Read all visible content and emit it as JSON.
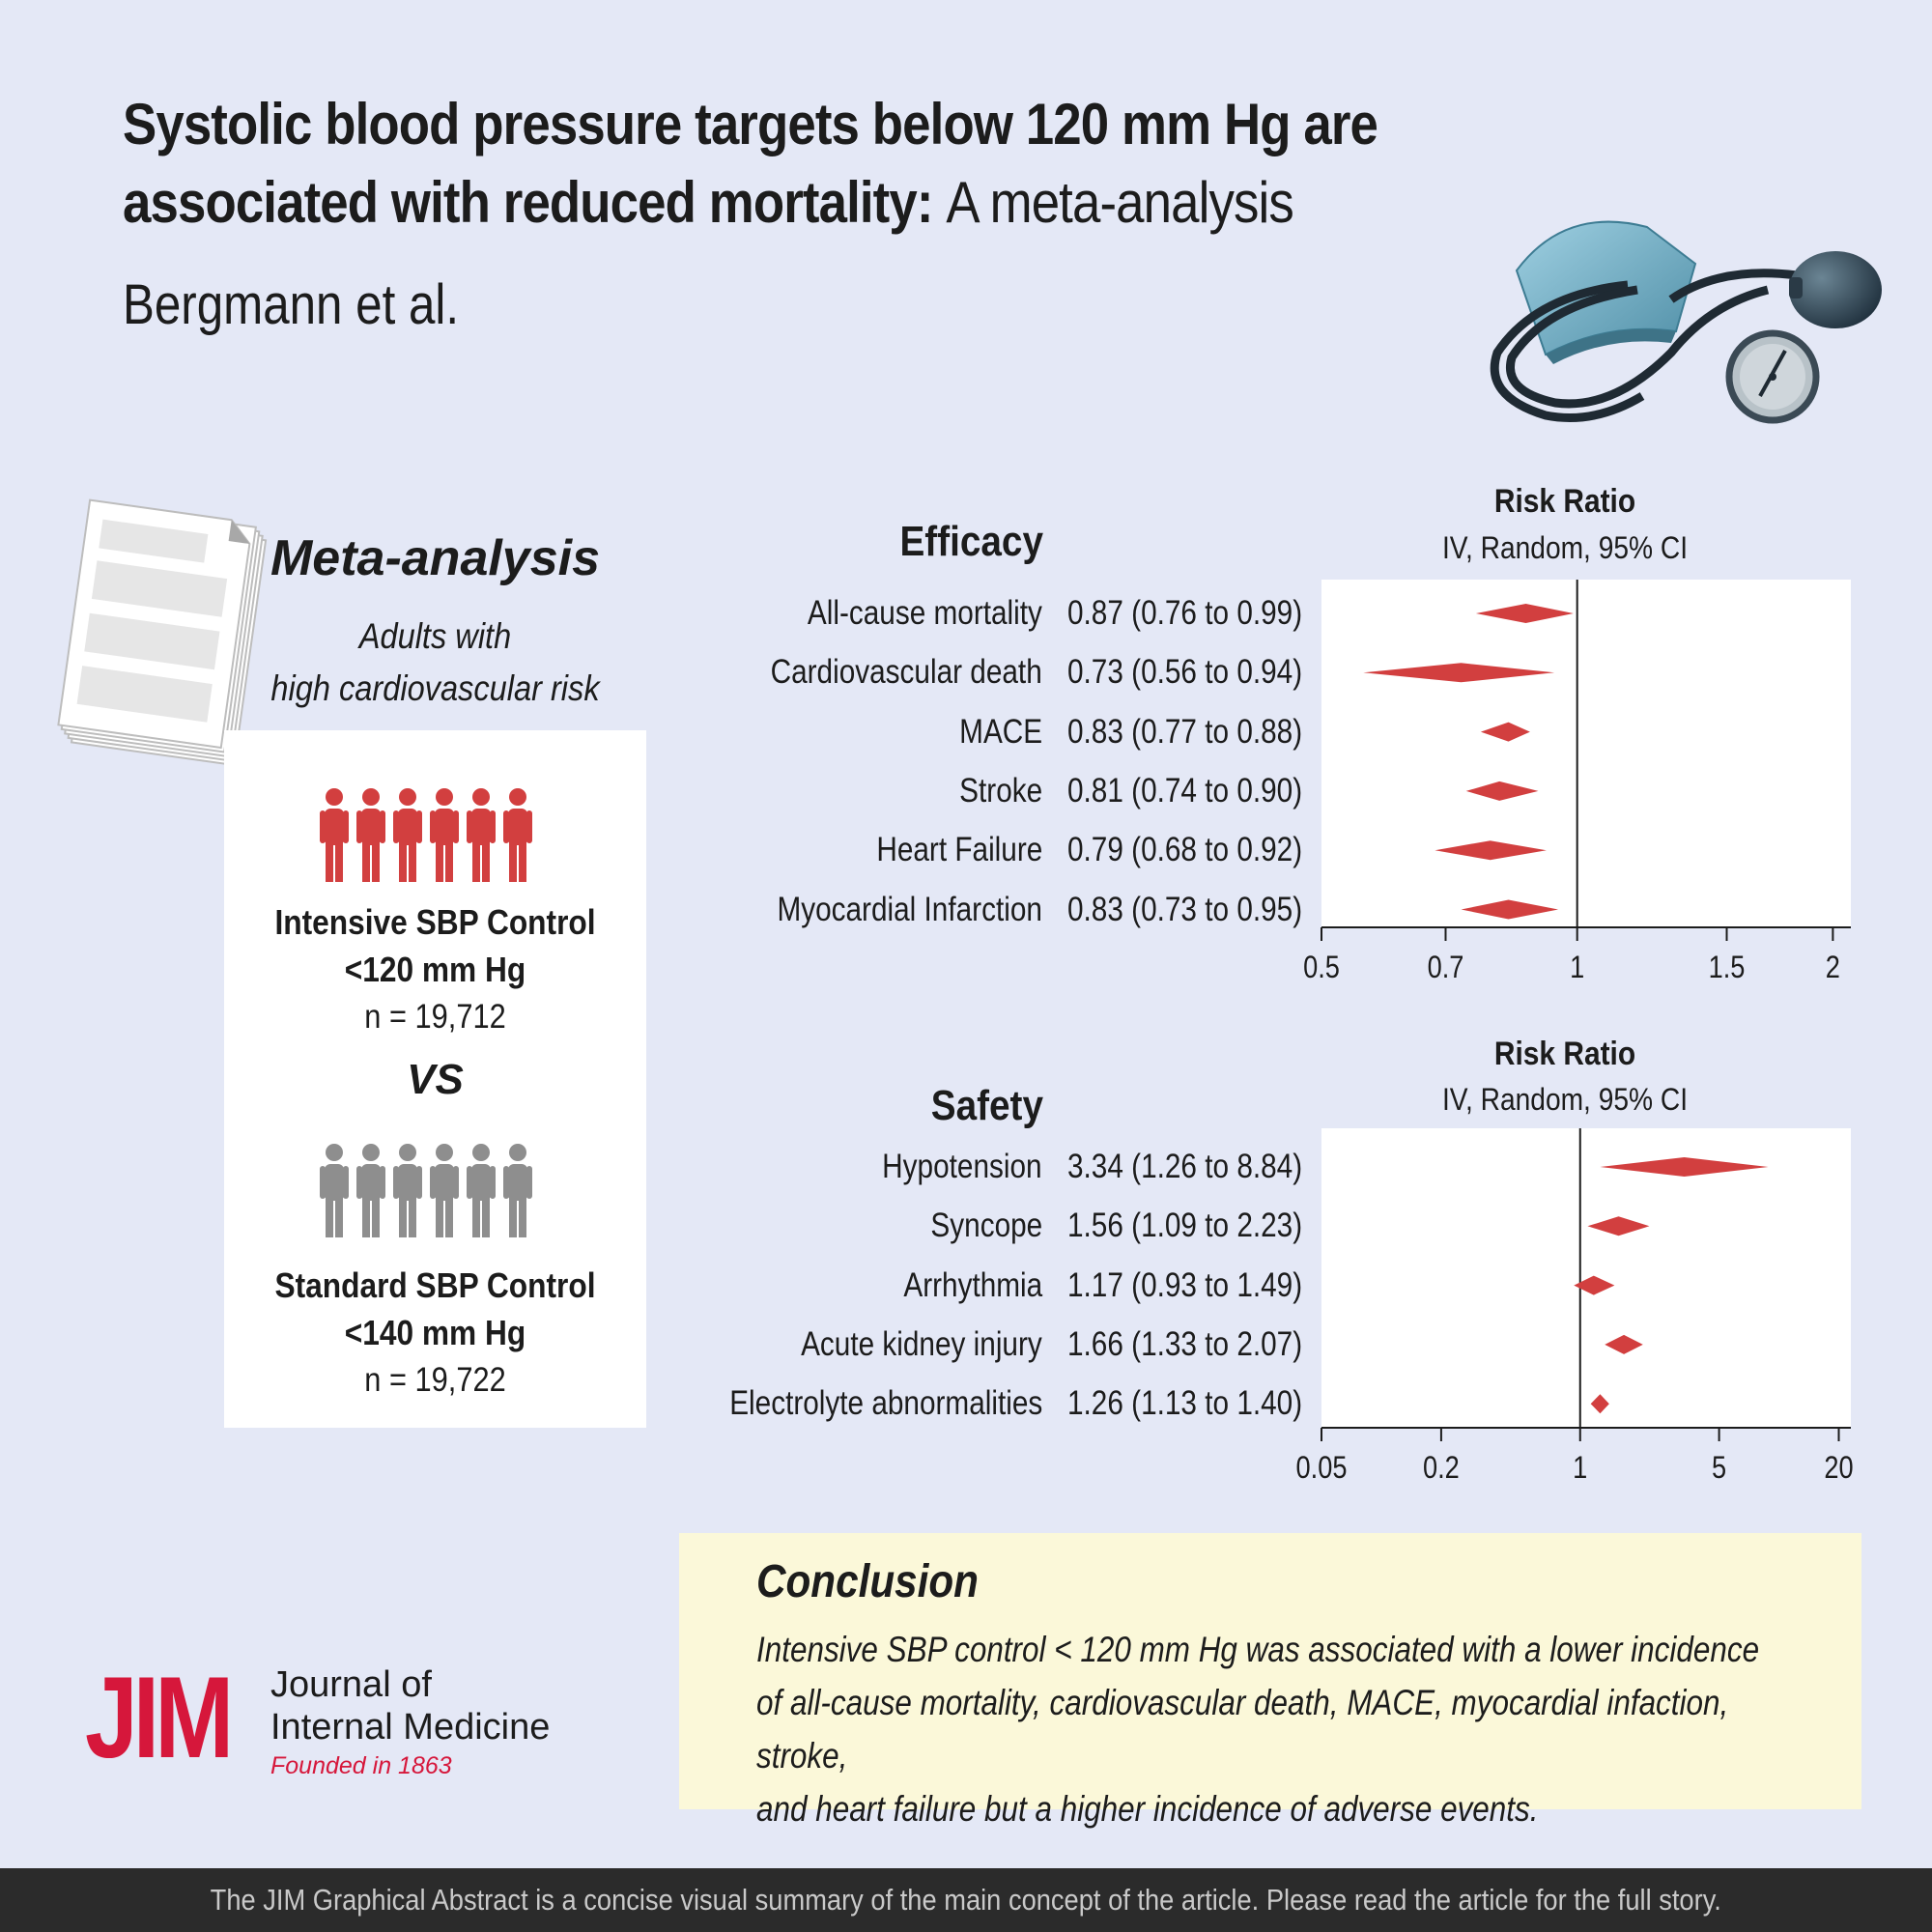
{
  "title": {
    "bold": "Systolic blood pressure targets below 120 mm Hg are associated with reduced mortality:",
    "rest": "A meta-analysis"
  },
  "authors": "Bergmann et al.",
  "study": {
    "heading": "Meta-analysis",
    "population_line1": "Adults with",
    "population_line2": "high cardiovascular risk",
    "intensive": {
      "label": "Intensive SBP Control",
      "target": "<120 mm Hg",
      "n": "n = 19,712",
      "color": "#d23f3f"
    },
    "vs": "VS",
    "standard": {
      "label": "Standard SBP Control",
      "target": "<140 mm Hg",
      "n": "n = 19,722",
      "color": "#8e8e8e"
    }
  },
  "efficacy": {
    "heading": "Efficacy",
    "axis_title": "Risk Ratio",
    "axis_subtitle": "IV, Random, 95% CI",
    "ticks": [
      "0.5",
      "0.7",
      "1",
      "1.5",
      "2"
    ],
    "rows": [
      {
        "label": "All-cause mortality",
        "value": "0.87 (0.76 to 0.99)"
      },
      {
        "label": "Cardiovascular death",
        "value": "0.73 (0.56 to 0.94)"
      },
      {
        "label": "MACE",
        "value": "0.83 (0.77 to 0.88)"
      },
      {
        "label": "Stroke",
        "value": "0.81 (0.74 to 0.90)"
      },
      {
        "label": "Heart Failure",
        "value": "0.79 (0.68 to 0.92)"
      },
      {
        "label": "Myocardial Infarction",
        "value": "0.83 (0.73 to 0.95)"
      }
    ]
  },
  "safety": {
    "heading": "Safety",
    "axis_title": "Risk Ratio",
    "axis_subtitle": "IV, Random, 95% CI",
    "ticks": [
      "0.05",
      "0.2",
      "1",
      "5",
      "20"
    ],
    "rows": [
      {
        "label": "Hypotension",
        "value": "3.34 (1.26 to 8.84)"
      },
      {
        "label": "Syncope",
        "value": "1.56 (1.09 to 2.23)"
      },
      {
        "label": "Arrhythmia",
        "value": "1.17 (0.93 to 1.49)"
      },
      {
        "label": "Acute kidney injury",
        "value": "1.66 (1.33 to 2.07)"
      },
      {
        "label": "Electrolyte abnormalities",
        "value": "1.26 (1.13 to 1.40)"
      }
    ]
  },
  "chart_data": [
    {
      "type": "scatter",
      "title": "Efficacy",
      "xlabel": "Risk Ratio",
      "scale": "log",
      "xlim": [
        0.5,
        2.1
      ],
      "reference_line": 1,
      "categories": [
        "All-cause mortality",
        "Cardiovascular death",
        "MACE",
        "Stroke",
        "Heart Failure",
        "Myocardial Infarction"
      ],
      "estimate": [
        0.87,
        0.73,
        0.83,
        0.81,
        0.79,
        0.83
      ],
      "lower": [
        0.76,
        0.56,
        0.77,
        0.74,
        0.68,
        0.73
      ],
      "upper": [
        0.99,
        0.94,
        0.88,
        0.9,
        0.92,
        0.95
      ],
      "marker_color": "#d23f3f"
    },
    {
      "type": "scatter",
      "title": "Safety",
      "xlabel": "Risk Ratio",
      "scale": "log",
      "xlim": [
        0.05,
        23
      ],
      "reference_line": 1,
      "categories": [
        "Hypotension",
        "Syncope",
        "Arrhythmia",
        "Acute kidney injury",
        "Electrolyte abnormalities"
      ],
      "estimate": [
        3.34,
        1.56,
        1.17,
        1.66,
        1.26
      ],
      "lower": [
        1.26,
        1.09,
        0.93,
        1.33,
        1.13
      ],
      "upper": [
        8.84,
        2.23,
        1.49,
        2.07,
        1.4
      ],
      "marker_color": "#d23f3f"
    }
  ],
  "conclusion": {
    "heading": "Conclusion",
    "line1": "Intensive SBP control < 120 mm Hg was associated with a lower incidence",
    "line2": "of all-cause mortality,  cardiovascular death, MACE, myocardial infaction, stroke,",
    "line3": "and heart failure but a higher incidence of adverse events."
  },
  "journal": {
    "logo": "JIM",
    "name_line1": "Journal of",
    "name_line2": "Internal Medicine",
    "founded": "Founded in 1863",
    "brand_color": "#d6173b"
  },
  "footer": "The JIM Graphical Abstract is a concise visual summary of the main concept of the article. Please read the article for the full story."
}
